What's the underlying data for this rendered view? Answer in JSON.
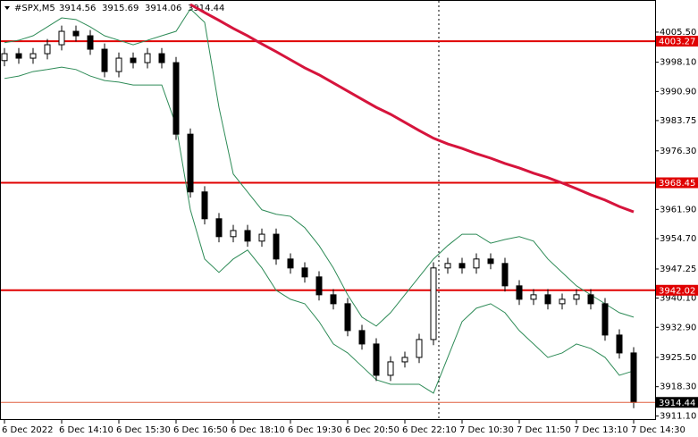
{
  "chart_data": {
    "type": "candlestick",
    "title": "#SPX,M5",
    "header_values": [
      3914.56,
      3915.69,
      3914.06,
      3914.44
    ],
    "categories": [
      "6 Dec 2022",
      null,
      null,
      null,
      "6 Dec 14:10",
      null,
      null,
      null,
      "6 Dec 15:30",
      null,
      null,
      null,
      "6 Dec 16:50",
      null,
      null,
      null,
      "6 Dec 18:10",
      null,
      null,
      null,
      "6 Dec 19:30",
      null,
      null,
      null,
      "6 Dec 20:50",
      null,
      null,
      null,
      "6 Dec 22:10",
      null,
      null,
      null,
      "7 Dec 10:30",
      null,
      null,
      null,
      "7 Dec 11:50",
      null,
      null,
      null,
      "7 Dec 13:10",
      null,
      null,
      null,
      "7 Dec 14:30"
    ],
    "open": [
      3998.5,
      4000.2,
      3999.1,
      4000.2,
      4002.4,
      4005.7,
      4004.6,
      4001.3,
      3995.8,
      3999.1,
      3998.0,
      4000.2,
      3998.0,
      3980.4,
      3966.2,
      3959.6,
      3955.2,
      3956.7,
      3954.1,
      3955.8,
      3949.7,
      3947.5,
      3945.3,
      3940.9,
      3938.7,
      3932.1,
      3928.8,
      3921.1,
      3924.4,
      3925.5,
      3929.9,
      3947.5,
      3948.6,
      3947.5,
      3949.7,
      3948.6,
      3943.1,
      3939.8,
      3940.9,
      3938.7,
      3939.8,
      3940.9,
      3938.7,
      3931.0,
      3926.6
    ],
    "high": [
      4001.6,
      4001.6,
      4001.6,
      4003.8,
      4007.1,
      4007.1,
      4006.0,
      4002.7,
      4000.5,
      4000.5,
      4001.6,
      4001.6,
      3999.4,
      3981.8,
      3967.6,
      3961.0,
      3958.1,
      3958.1,
      3957.2,
      3957.2,
      3951.1,
      3948.9,
      3946.7,
      3942.3,
      3940.1,
      3933.5,
      3930.2,
      3925.8,
      3926.9,
      3931.3,
      3948.9,
      3950.0,
      3950.0,
      3951.1,
      3951.1,
      3950.0,
      3944.5,
      3942.3,
      3942.3,
      3941.2,
      3942.3,
      3942.3,
      3940.1,
      3932.4,
      3928.0
    ],
    "low": [
      3997.1,
      3997.7,
      3997.7,
      3998.8,
      4001.0,
      4003.2,
      3999.9,
      3994.4,
      3994.4,
      3996.6,
      3996.6,
      3996.6,
      3979.0,
      3964.8,
      3958.2,
      3953.8,
      3953.8,
      3952.7,
      3952.7,
      3948.3,
      3946.1,
      3943.9,
      3939.5,
      3937.3,
      3930.7,
      3927.4,
      3919.7,
      3919.7,
      3923.0,
      3924.1,
      3928.5,
      3946.1,
      3946.1,
      3946.1,
      3947.2,
      3941.7,
      3938.4,
      3938.4,
      3937.3,
      3937.3,
      3938.4,
      3937.3,
      3929.6,
      3925.2,
      3913.0
    ],
    "close": [
      4000.2,
      3999.1,
      4000.2,
      4002.4,
      4005.7,
      4004.6,
      4001.3,
      3995.8,
      3999.1,
      3998.0,
      4000.2,
      3998.0,
      3980.4,
      3966.2,
      3959.6,
      3955.2,
      3956.7,
      3954.1,
      3955.8,
      3949.7,
      3947.5,
      3945.3,
      3940.9,
      3938.7,
      3932.1,
      3928.8,
      3921.1,
      3924.4,
      3925.5,
      3929.9,
      3947.5,
      3948.6,
      3947.5,
      3949.7,
      3948.6,
      3943.1,
      3939.8,
      3940.9,
      3938.7,
      3939.8,
      3940.9,
      3938.7,
      3931.0,
      3926.6,
      3914.44
    ],
    "up_color": "#ffffff",
    "down_color": "#000000",
    "series": [
      {
        "color": "#2e8b57",
        "values": [
          4002.9,
          4003.5,
          4004.6,
          4006.8,
          4009.0,
          4008.6,
          4006.8,
          4004.6,
          4003.5,
          4002.4,
          4003.5,
          4004.6,
          4005.7,
          4011.2,
          4007.9,
          3987.0,
          3970.6,
          3966.2,
          3961.8,
          3960.7,
          3960.2,
          3957.4,
          3953.0,
          3947.5,
          3940.9,
          3935.4,
          3933.2,
          3936.5,
          3940.9,
          3945.3,
          3949.7,
          3953.0,
          3955.8,
          3955.8,
          3953.6,
          3954.5,
          3955.2,
          3954.1,
          3949.7,
          3946.4,
          3943.1,
          3940.9,
          3938.7,
          3936.5,
          3935.4
        ]
      },
      {
        "color": "#2e8b57",
        "values": [
          3994.1,
          3994.7,
          3995.8,
          3996.3,
          3996.9,
          3996.3,
          3994.7,
          3993.6,
          3993.2,
          3992.5,
          3992.5,
          3992.5,
          3982.6,
          3961.8,
          3949.7,
          3946.4,
          3949.7,
          3951.9,
          3947.5,
          3942.0,
          3939.8,
          3938.7,
          3934.3,
          3928.8,
          3926.6,
          3923.3,
          3920.0,
          3918.9,
          3918.9,
          3918.9,
          3916.7,
          3925.5,
          3934.3,
          3937.6,
          3938.7,
          3936.5,
          3932.1,
          3928.8,
          3925.5,
          3926.6,
          3928.8,
          3927.7,
          3925.5,
          3921.1,
          3922.2
        ]
      },
      {
        "color": "#d6143c",
        "values": [
          null,
          null,
          null,
          null,
          null,
          null,
          null,
          null,
          null,
          null,
          null,
          null,
          null,
          4012.3,
          4010.3,
          4008.4,
          4006.4,
          4004.6,
          4002.6,
          4000.7,
          3998.7,
          3996.7,
          3995.0,
          3993.0,
          3991.0,
          3989.0,
          3987.0,
          3985.3,
          3983.3,
          3981.3,
          3979.4,
          3978.0,
          3976.9,
          3975.6,
          3974.5,
          3973.2,
          3972.1,
          3970.8,
          3969.7,
          3968.4,
          3967.0,
          3965.5,
          3964.2,
          3962.6,
          3961.3
        ]
      }
    ],
    "levels": [
      4003.27,
      3968.45,
      3942.02
    ],
    "level_color": "#e00000",
    "last_price": 3914.44,
    "ylim": [
      3910.1,
      4013.4
    ],
    "yticks": [
      {
        "value": 4005.5,
        "label": "4005.50"
      },
      {
        "value": 3998.1,
        "label": "3998.10"
      },
      {
        "value": 3990.9,
        "label": "3990.90"
      },
      3983.75,
      {
        "value": 3976.3,
        "label": "3976.30"
      },
      {
        "value": 3961.9,
        "label": "3961.90"
      },
      {
        "value": 3954.7,
        "label": "3954.70"
      },
      3947.25,
      {
        "value": 3940.1,
        "label": "3940.10"
      },
      {
        "value": 3932.9,
        "label": "3932.90"
      },
      {
        "value": 3925.5,
        "label": "3925.50"
      },
      {
        "value": 3918.3,
        "label": "3918.30"
      },
      {
        "value": 3911.1,
        "label": "3911.10"
      }
    ]
  }
}
